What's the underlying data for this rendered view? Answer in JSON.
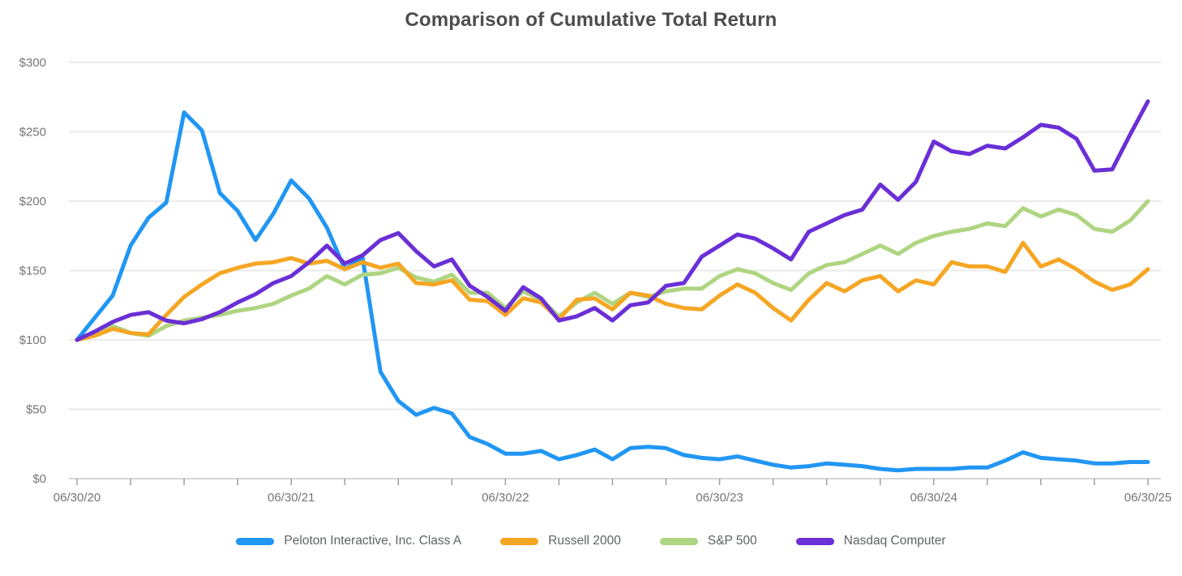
{
  "title": "Comparison of Cumulative Total Return",
  "accent_colors": {
    "title_text": "#4d4d4d",
    "axis_text": "#757575",
    "gridline": "#ebebeb",
    "axis_line": "#d6d6d6",
    "tick_mark": "#9e9e9e"
  },
  "chart_data": {
    "type": "line",
    "title": "Comparison of Cumulative Total Return",
    "xlabel": "",
    "ylabel": "",
    "x_frequency": "monthly",
    "x_start": "06/30/20",
    "x_end": "06/30/25",
    "x_tick_labels": [
      "06/30/20",
      "06/30/21",
      "06/30/22",
      "06/30/23",
      "06/30/24",
      "06/30/25"
    ],
    "minor_tick_every_months": 3,
    "y_ticks": [
      0,
      50,
      100,
      150,
      200,
      250,
      300
    ],
    "y_tick_labels": [
      "$0",
      "$50",
      "$100",
      "$150",
      "$200",
      "$250",
      "$300"
    ],
    "ylim": [
      0,
      300
    ],
    "grid": true,
    "legend_position": "bottom",
    "draw_order": [
      0,
      2,
      1,
      3
    ],
    "series": [
      {
        "name": "Peloton Interactive, Inc. Class A",
        "color": "#2196F3",
        "values": [
          100,
          116,
          132,
          168,
          188,
          199,
          264,
          251,
          206,
          193,
          172,
          191,
          215,
          202,
          181,
          151,
          159,
          77,
          56,
          46,
          51,
          47,
          30,
          25,
          18,
          18,
          20,
          14,
          17,
          21,
          14,
          22,
          23,
          22,
          17,
          15,
          14,
          16,
          13,
          10,
          8,
          9,
          11,
          10,
          9,
          7,
          6,
          7,
          7,
          7,
          8,
          8,
          13,
          19,
          15,
          14,
          13,
          11,
          11,
          12,
          12
        ]
      },
      {
        "name": "Russell 2000",
        "color": "#F5A623",
        "values": [
          100,
          103,
          108,
          105,
          104,
          118,
          131,
          140,
          148,
          152,
          155,
          156,
          159,
          155,
          157,
          151,
          156,
          152,
          155,
          141,
          140,
          143,
          129,
          128,
          118,
          130,
          127,
          115,
          129,
          130,
          122,
          134,
          132,
          126,
          123,
          122,
          132,
          140,
          134,
          123,
          114,
          129,
          141,
          135,
          143,
          146,
          135,
          143,
          140,
          156,
          153,
          153,
          149,
          170,
          153,
          158,
          151,
          142,
          136,
          140,
          151
        ]
      },
      {
        "name": "S&P 500",
        "color": "#AED581",
        "values": [
          100,
          104,
          110,
          105,
          103,
          110,
          114,
          116,
          118,
          121,
          123,
          126,
          132,
          137,
          146,
          140,
          147,
          148,
          152,
          145,
          142,
          147,
          134,
          134,
          123,
          135,
          129,
          117,
          127,
          134,
          126,
          134,
          131,
          135,
          137,
          137,
          146,
          151,
          148,
          141,
          136,
          148,
          154,
          156,
          162,
          168,
          162,
          170,
          175,
          178,
          180,
          184,
          182,
          195,
          189,
          194,
          190,
          180,
          178,
          186,
          200
        ]
      },
      {
        "name": "Nasdaq Computer",
        "color": "#6A2FD6",
        "values": [
          100,
          106,
          113,
          118,
          120,
          114,
          112,
          115,
          120,
          127,
          133,
          141,
          146,
          156,
          168,
          155,
          161,
          172,
          177,
          164,
          153,
          158,
          139,
          131,
          121,
          138,
          130,
          114,
          117,
          123,
          114,
          125,
          127,
          139,
          141,
          160,
          168,
          176,
          173,
          166,
          158,
          178,
          184,
          190,
          194,
          212,
          201,
          214,
          243,
          236,
          234,
          240,
          238,
          246,
          255,
          253,
          245,
          222,
          223,
          248,
          272
        ]
      }
    ]
  }
}
